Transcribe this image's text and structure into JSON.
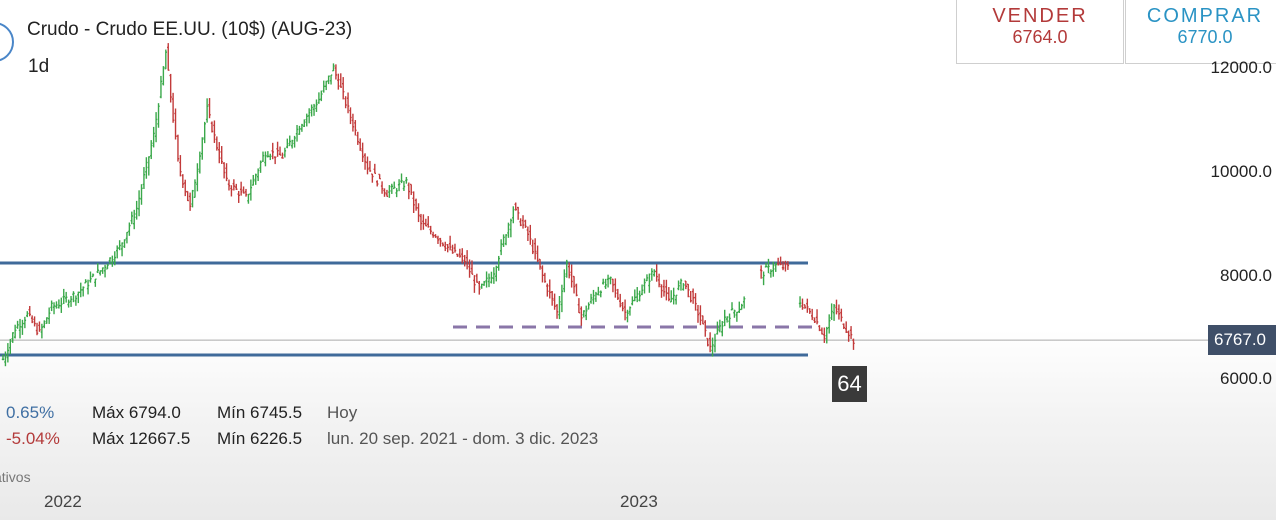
{
  "header": {
    "title": "Crudo - Crudo EE.UU. (10$) (AUG-23)",
    "interval": "1d"
  },
  "trade": {
    "sell_label": "VENDER",
    "sell_price": "6764.0",
    "buy_label": "COMPRAR",
    "buy_price": "6770.0"
  },
  "current_price_tag": "6767.0",
  "badge": "64",
  "stats": {
    "row1": {
      "pct": "0.65%",
      "max": "Máx 6794.0",
      "min": "Mín 6745.5",
      "period": "Hoy"
    },
    "row2": {
      "pct": "-5.04%",
      "max": "Máx 12667.5",
      "min": "Mín 6226.5",
      "period": "lun. 20 sep. 2021 - dom. 3 dic. 2023"
    }
  },
  "footer_label": "ativos",
  "colors": {
    "up": "#3aa84a",
    "down": "#c23a3a",
    "hline": "#3f6a9a",
    "dashed": "#8a76a8",
    "price_line": "#aaaaaa"
  },
  "chart_data": {
    "type": "ohlc",
    "ylim": [
      5600,
      12800
    ],
    "yticks": [
      {
        "value": 12000,
        "label": "12000.0"
      },
      {
        "value": 10000,
        "label": "10000.0"
      },
      {
        "value": 8000,
        "label": "8000.0"
      },
      {
        "value": 6000,
        "label": "6000.0"
      }
    ],
    "xticks": [
      "2022",
      "2023"
    ],
    "current_price": 6767,
    "support_resistance": [
      8250,
      6480
    ],
    "dashed_level": 7020,
    "waypoints": [
      [
        0,
        6400
      ],
      [
        5,
        7000
      ],
      [
        10,
        7250
      ],
      [
        15,
        6900
      ],
      [
        20,
        7400
      ],
      [
        30,
        7650
      ],
      [
        40,
        8100
      ],
      [
        48,
        8550
      ],
      [
        55,
        9300
      ],
      [
        62,
        10700
      ],
      [
        67,
        12300
      ],
      [
        72,
        10200
      ],
      [
        77,
        9300
      ],
      [
        84,
        11200
      ],
      [
        92,
        9800
      ],
      [
        100,
        9500
      ],
      [
        108,
        10400
      ],
      [
        115,
        10300
      ],
      [
        122,
        10900
      ],
      [
        130,
        11400
      ],
      [
        136,
        12000
      ],
      [
        142,
        11200
      ],
      [
        150,
        10100
      ],
      [
        158,
        9600
      ],
      [
        166,
        9800
      ],
      [
        172,
        9000
      ],
      [
        178,
        8800
      ],
      [
        185,
        8450
      ],
      [
        190,
        8300
      ],
      [
        196,
        7700
      ],
      [
        202,
        8100
      ],
      [
        210,
        9300
      ],
      [
        216,
        8800
      ],
      [
        222,
        8000
      ],
      [
        228,
        7300
      ],
      [
        232,
        8250
      ],
      [
        238,
        7200
      ],
      [
        244,
        7700
      ],
      [
        250,
        7900
      ],
      [
        256,
        7300
      ],
      [
        262,
        7700
      ],
      [
        268,
        8100
      ],
      [
        274,
        7500
      ],
      [
        280,
        7900
      ],
      [
        286,
        7300
      ],
      [
        291,
        6600
      ],
      [
        297,
        7200
      ],
      [
        303,
        7400
      ],
      [
        306,
        7600
      ],
      [
        309,
        null
      ],
      [
        312,
        8050
      ],
      [
        318,
        8200
      ],
      [
        324,
        8150
      ],
      [
        326,
        null
      ],
      [
        328,
        7500
      ],
      [
        334,
        7200
      ],
      [
        338,
        6850
      ],
      [
        342,
        7400
      ],
      [
        347,
        7000
      ],
      [
        350,
        6767
      ]
    ]
  }
}
